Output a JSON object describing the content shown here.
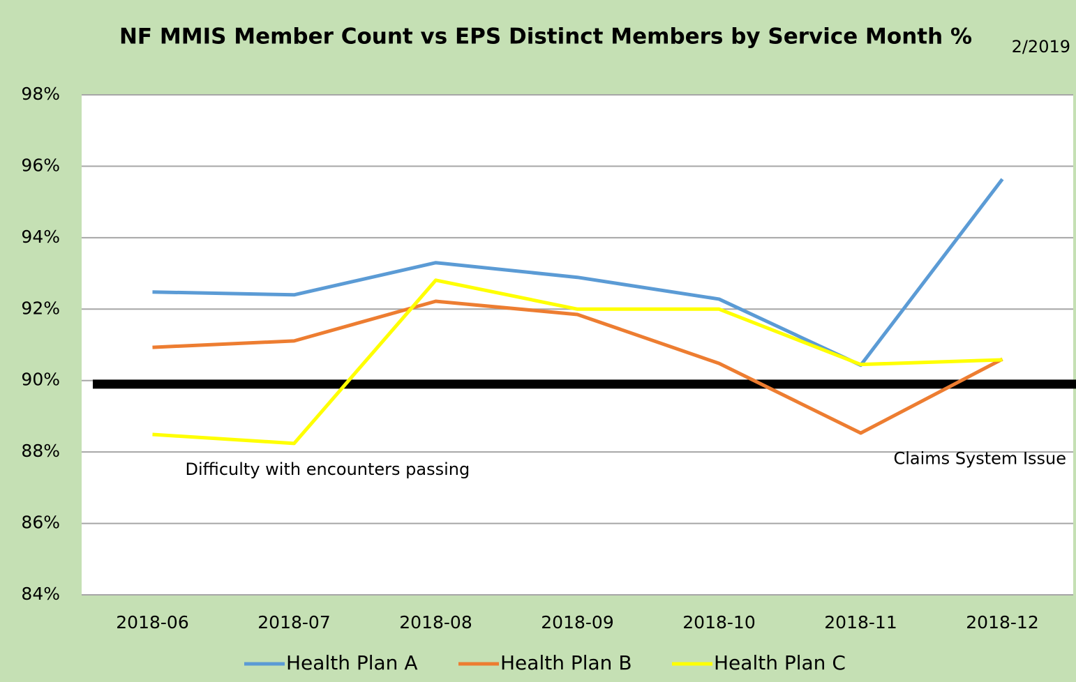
{
  "chart_data": {
    "type": "line",
    "title": "NF MMIS Member Count vs EPS Distinct Members by Service Month %",
    "date_note": "2/2019",
    "categories": [
      "2018-06",
      "2018-07",
      "2018-08",
      "2018-09",
      "2018-10",
      "2018-11",
      "2018-12"
    ],
    "series": [
      {
        "name": "Health Plan A",
        "color": "#5b9bd5",
        "values": [
          92.48,
          92.4,
          93.3,
          92.89,
          92.28,
          90.43,
          95.64
        ]
      },
      {
        "name": "Health Plan B",
        "color": "#ed7d31",
        "values": [
          90.93,
          91.11,
          92.22,
          91.85,
          90.48,
          88.53,
          90.6
        ]
      },
      {
        "name": "Health Plan C",
        "color": "#ffff00",
        "values": [
          88.49,
          88.24,
          92.81,
          92.0,
          92.0,
          90.45,
          90.58
        ]
      }
    ],
    "reference_line": {
      "value": 89.9,
      "color": "#000000"
    },
    "annotations": [
      {
        "text": "Difficulty with encounters passing",
        "category": 0,
        "value": 87.5
      },
      {
        "text": "Claims System Issue",
        "category": 5,
        "value": 87.8
      }
    ],
    "ylim": [
      84,
      98
    ],
    "yticks": [
      {
        "value": 84,
        "label": "84%"
      },
      {
        "value": 86,
        "label": "86%"
      },
      {
        "value": 88,
        "label": "88%"
      },
      {
        "value": 90,
        "label": "90%"
      },
      {
        "value": 92,
        "label": "92%"
      },
      {
        "value": 94,
        "label": "94%"
      },
      {
        "value": 96,
        "label": "96%"
      },
      {
        "value": 98,
        "label": "98%"
      }
    ],
    "grid": true,
    "legend": "bottom"
  }
}
